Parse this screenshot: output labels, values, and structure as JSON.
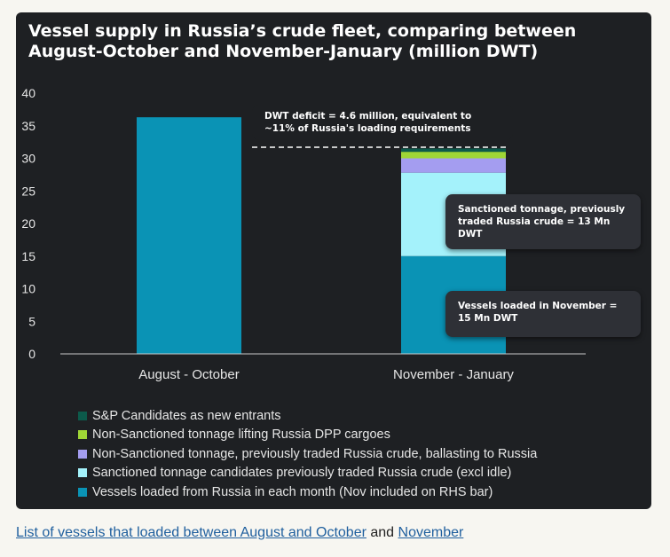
{
  "chart_data": {
    "type": "bar",
    "title": "Vessel supply in Russia’s crude fleet, comparing between August-October and November-January (million DWT)",
    "categories": [
      "August - October",
      "November - January"
    ],
    "ylim": [
      0,
      40
    ],
    "yticks": [
      0,
      5,
      10,
      15,
      20,
      25,
      30,
      35,
      40
    ],
    "stacked": true,
    "series": [
      {
        "name": "Vessels loaded from Russia in each month (Nov included on RHS bar)",
        "color": "#0a93b5",
        "values": [
          36.3,
          15
        ]
      },
      {
        "name": "Sanctioned tonnage candidates previously traded Russia crude (excl idle)",
        "color": "#a4f2fb",
        "values": [
          0,
          12.8
        ]
      },
      {
        "name": "Non-Sanctioned tonnage, previously traded Russia crude, ballasting to Russia",
        "color": "#a49df0",
        "values": [
          0,
          2.2
        ]
      },
      {
        "name": "Non-Sanctioned tonnage lifting Russia DPP cargoes",
        "color": "#9fd636",
        "values": [
          0,
          1.0
        ]
      },
      {
        "name": "S&P Candidates as new entrants",
        "color": "#0c5a4b",
        "values": [
          0,
          0.5
        ]
      }
    ],
    "legend_order": [
      4,
      3,
      2,
      1,
      0
    ],
    "reference_line": {
      "y": 31.7,
      "style": "dashed"
    },
    "annotations": [
      {
        "id": "deficit",
        "text": "DWT deficit = 4.6 million, equivalent to ~11% of Russia's loading requirements"
      },
      {
        "id": "sanctioned",
        "text": "Sanctioned tonnage, previously traded Russia crude = 13 Mn DWT"
      },
      {
        "id": "loaded",
        "text": "Vessels loaded in November = 15 Mn DWT"
      }
    ]
  },
  "caption": {
    "link1": "List of vessels that loaded between August and October",
    "connector": " and ",
    "link2": "November"
  }
}
